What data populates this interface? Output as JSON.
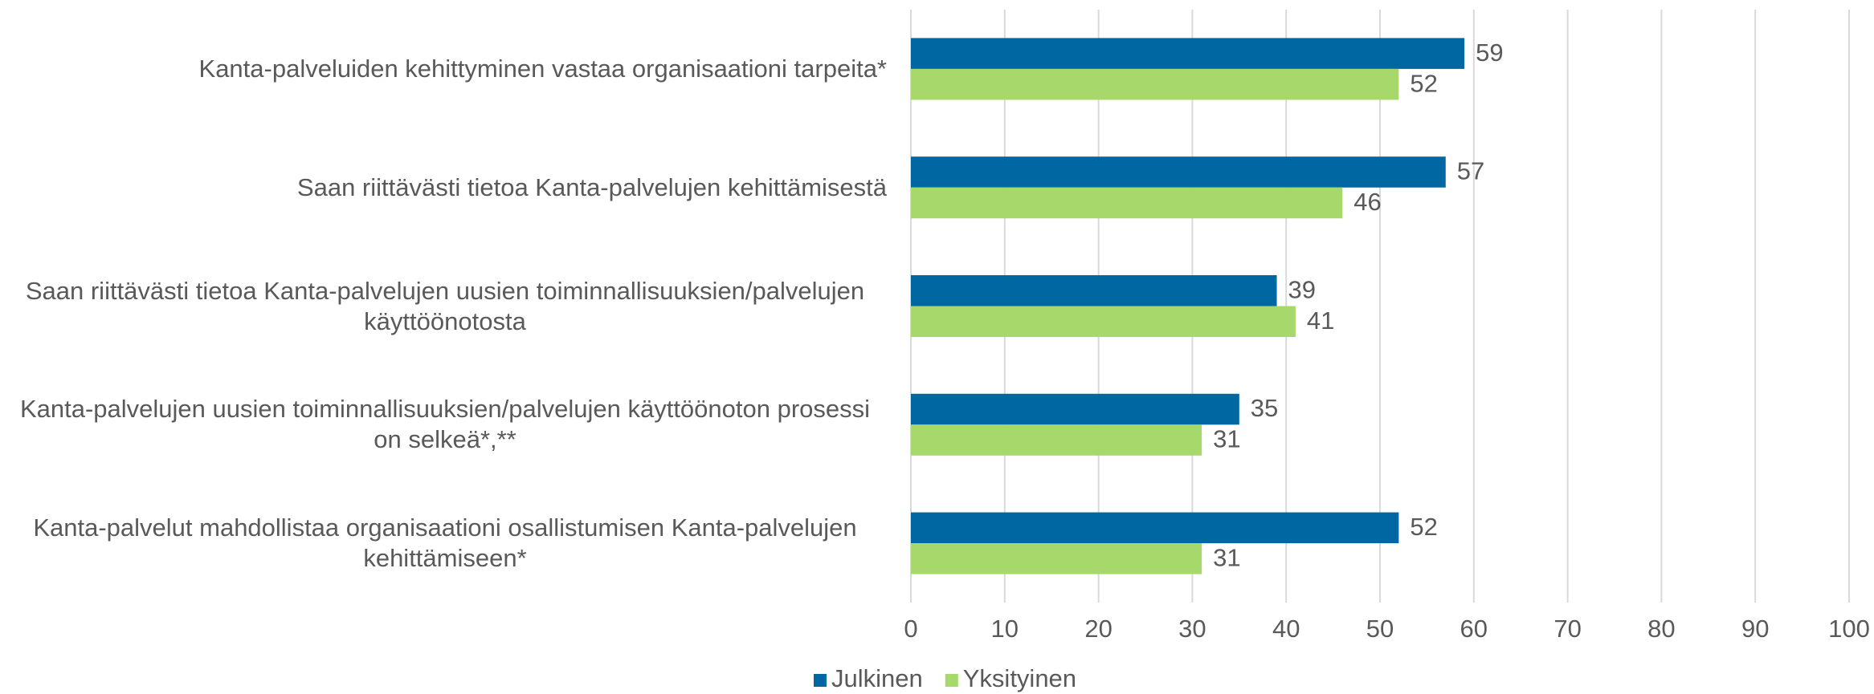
{
  "chart_data": {
    "type": "barh",
    "categories": [
      "Kanta-palveluiden kehittyminen vastaa organisaationi tarpeita*",
      "Saan riittävästi tietoa Kanta-palvelujen kehittämisestä",
      "Saan riittävästi tietoa Kanta-palvelujen uusien toiminnallisuuksien/palvelujen käyttöönotosta",
      "Kanta-palvelujen uusien toiminnallisuuksien/palvelujen käyttöönoton prosessi on selkeä*,**",
      "Kanta-palvelut mahdollistaa organisaationi osallistumisen Kanta-palvelujen kehittämiseen*"
    ],
    "series": [
      {
        "name": "Julkinen",
        "color": "#0067a3",
        "values": [
          59,
          57,
          39,
          35,
          52
        ]
      },
      {
        "name": "Yksityinen",
        "color": "#a6d86b",
        "values": [
          52,
          46,
          41,
          31,
          31
        ]
      }
    ],
    "xlim": [
      0,
      100
    ],
    "xticks": [
      0,
      10,
      20,
      30,
      40,
      50,
      60,
      70,
      80,
      90,
      100
    ],
    "grid": true,
    "legend": "bottom"
  }
}
